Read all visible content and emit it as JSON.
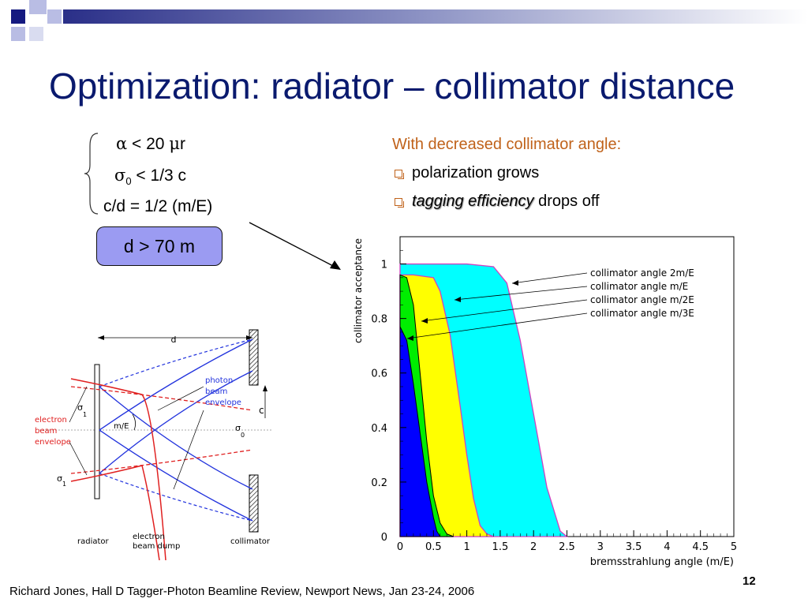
{
  "title": "Optimization: radiator – collimator distance",
  "conditions": {
    "alpha": {
      "symbol": "α",
      "text_a": " < 20 ",
      "mu": "μ",
      "text_b": "r"
    },
    "sigma": {
      "symbol": "σ",
      "sub": "0",
      "text": " < 1/3 c"
    },
    "cd": "c/d = 1/2 (m/E)"
  },
  "result_box": "d > 70 m",
  "right_panel": {
    "heading": "With decreased collimator angle:",
    "bullet1": "polarization grows",
    "bullet2_em": "tagging efficiency",
    "bullet2_rest": " drops off"
  },
  "diagram": {
    "d_label": "d",
    "c_label": "c",
    "sigma1": "σ",
    "sigma1_sub": "1",
    "sigma0": "σ",
    "sigma0_sub": "0",
    "sigma_left": "σ",
    "sigma_left_sub": "1",
    "angle_label": "m/E",
    "photon_label": [
      "photon",
      "beam",
      "envelope"
    ],
    "electron_label": [
      "electron",
      "beam",
      "envelope"
    ],
    "radiator": "radiator",
    "dump": [
      "electron",
      "beam dump"
    ],
    "collimator": "collimator"
  },
  "chart_data": {
    "type": "area",
    "ylabel": "collimator acceptance",
    "xlabel": "bremsstrahlung angle (m/E)",
    "xlim": [
      0,
      5
    ],
    "ylim": [
      0,
      1.1
    ],
    "xticks": [
      "0",
      "0.5",
      "1",
      "1.5",
      "2",
      "2.5",
      "3",
      "3.5",
      "4",
      "4.5",
      "5"
    ],
    "yticks": [
      "0",
      "0.2",
      "0.4",
      "0.6",
      "0.8",
      "1"
    ],
    "grid": false,
    "series": [
      {
        "name": "collimator angle 2m/E",
        "color": "#00ffff",
        "x": [
          0,
          0.5,
          1.0,
          1.4,
          1.6,
          1.8,
          2.0,
          2.2,
          2.4,
          2.5
        ],
        "values": [
          1.0,
          1.0,
          1.0,
          0.99,
          0.93,
          0.72,
          0.45,
          0.18,
          0.02,
          0.0
        ]
      },
      {
        "name": "collimator angle m/E",
        "color": "#ffff00",
        "x": [
          0,
          0.2,
          0.5,
          0.6,
          0.75,
          0.9,
          1.0,
          1.1,
          1.2,
          1.3,
          1.4
        ],
        "values": [
          0.96,
          0.96,
          0.95,
          0.9,
          0.74,
          0.48,
          0.3,
          0.14,
          0.04,
          0.01,
          0.0
        ]
      },
      {
        "name": "collimator angle m/2E",
        "color": "#00ee00",
        "x": [
          0,
          0.1,
          0.2,
          0.3,
          0.4,
          0.5,
          0.6,
          0.7,
          0.8
        ],
        "values": [
          0.96,
          0.95,
          0.85,
          0.6,
          0.35,
          0.15,
          0.05,
          0.01,
          0.0
        ]
      },
      {
        "name": "collimator angle m/3E",
        "color": "#0000ff",
        "x": [
          0,
          0.1,
          0.2,
          0.3,
          0.4,
          0.5,
          0.55,
          0.6
        ],
        "values": [
          0.77,
          0.72,
          0.56,
          0.38,
          0.2,
          0.07,
          0.02,
          0.0
        ]
      }
    ]
  },
  "footer": "Richard Jones, Hall D Tagger-Photon Beamline Review, Newport News, Jan 23-24, 2006",
  "page_number": "12"
}
